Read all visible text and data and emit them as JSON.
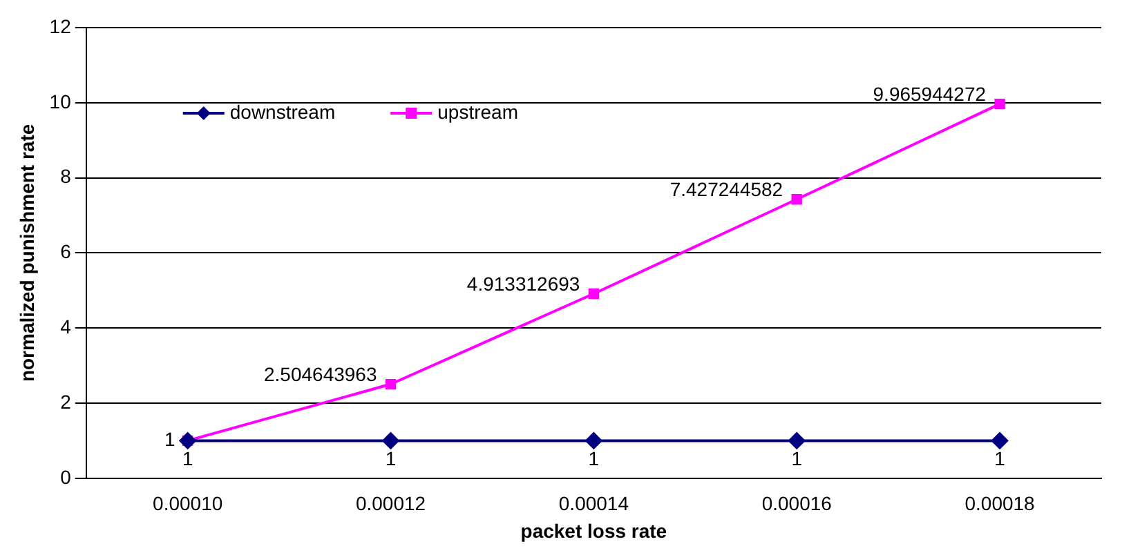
{
  "chart_data": {
    "type": "line",
    "xlabel": "packet loss rate",
    "ylabel": "normalized punishment rate",
    "categories": [
      "0.00010",
      "0.00012",
      "0.00014",
      "0.00016",
      "0.00018"
    ],
    "series": [
      {
        "name": "downstream",
        "color": "#000080",
        "marker": "diamond",
        "values": [
          1,
          1,
          1,
          1,
          1
        ]
      },
      {
        "name": "upstream",
        "color": "#ff00ff",
        "marker": "square",
        "values": [
          1,
          2.504643963,
          4.913312693,
          7.427244582,
          9.965944272
        ]
      }
    ],
    "ylim": [
      0,
      12
    ],
    "yticks": [
      0,
      2,
      4,
      6,
      8,
      10,
      12
    ],
    "grid": "y",
    "legend": "top left",
    "data_labels": true,
    "line_style": "solid"
  }
}
